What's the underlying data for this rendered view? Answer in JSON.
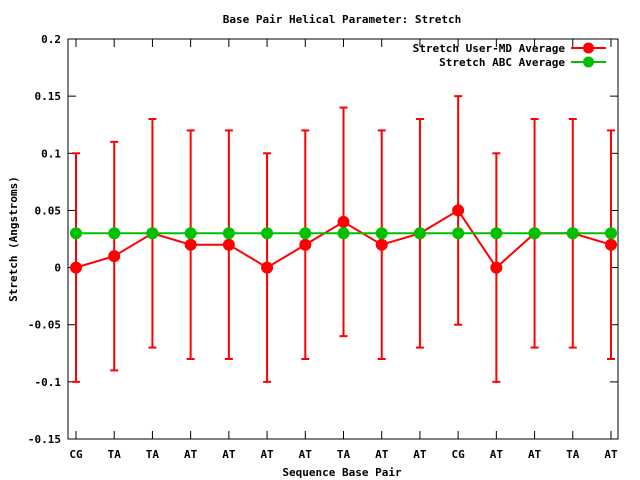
{
  "chart_data": {
    "type": "line",
    "title": "Base Pair Helical Parameter: Stretch",
    "xlabel": "Sequence Base Pair",
    "ylabel": "Stretch (Angstroms)",
    "categories": [
      "CG",
      "TA",
      "TA",
      "AT",
      "AT",
      "AT",
      "AT",
      "TA",
      "AT",
      "AT",
      "CG",
      "AT",
      "AT",
      "TA",
      "AT"
    ],
    "ylim": [
      -0.15,
      0.2
    ],
    "yticks": [
      -0.15,
      -0.1,
      -0.05,
      0,
      0.05,
      0.1,
      0.15,
      0.2
    ],
    "ytick_labels": [
      "-0.15",
      "-0.1",
      "-0.05",
      "0",
      "0.05",
      "0.1",
      "0.15",
      "0.2"
    ],
    "legend_position": "top-right",
    "grid": false,
    "series": [
      {
        "name": "Stretch User-MD Average",
        "color": "#ff0000",
        "values": [
          0.0,
          0.01,
          0.03,
          0.02,
          0.02,
          0.0,
          0.02,
          0.04,
          0.02,
          0.03,
          0.05,
          0.0,
          0.03,
          0.03,
          0.02
        ],
        "err_low": [
          -0.1,
          -0.09,
          -0.07,
          -0.08,
          -0.08,
          -0.1,
          -0.08,
          -0.06,
          -0.08,
          -0.07,
          -0.05,
          -0.1,
          -0.07,
          -0.07,
          -0.08
        ],
        "err_high": [
          0.1,
          0.11,
          0.13,
          0.12,
          0.12,
          0.1,
          0.12,
          0.14,
          0.12,
          0.13,
          0.15,
          0.1,
          0.13,
          0.13,
          0.12
        ]
      },
      {
        "name": "Stretch ABC Average",
        "color": "#00c000",
        "values": [
          0.03,
          0.03,
          0.03,
          0.03,
          0.03,
          0.03,
          0.03,
          0.03,
          0.03,
          0.03,
          0.03,
          0.03,
          0.03,
          0.03,
          0.03
        ]
      }
    ]
  }
}
